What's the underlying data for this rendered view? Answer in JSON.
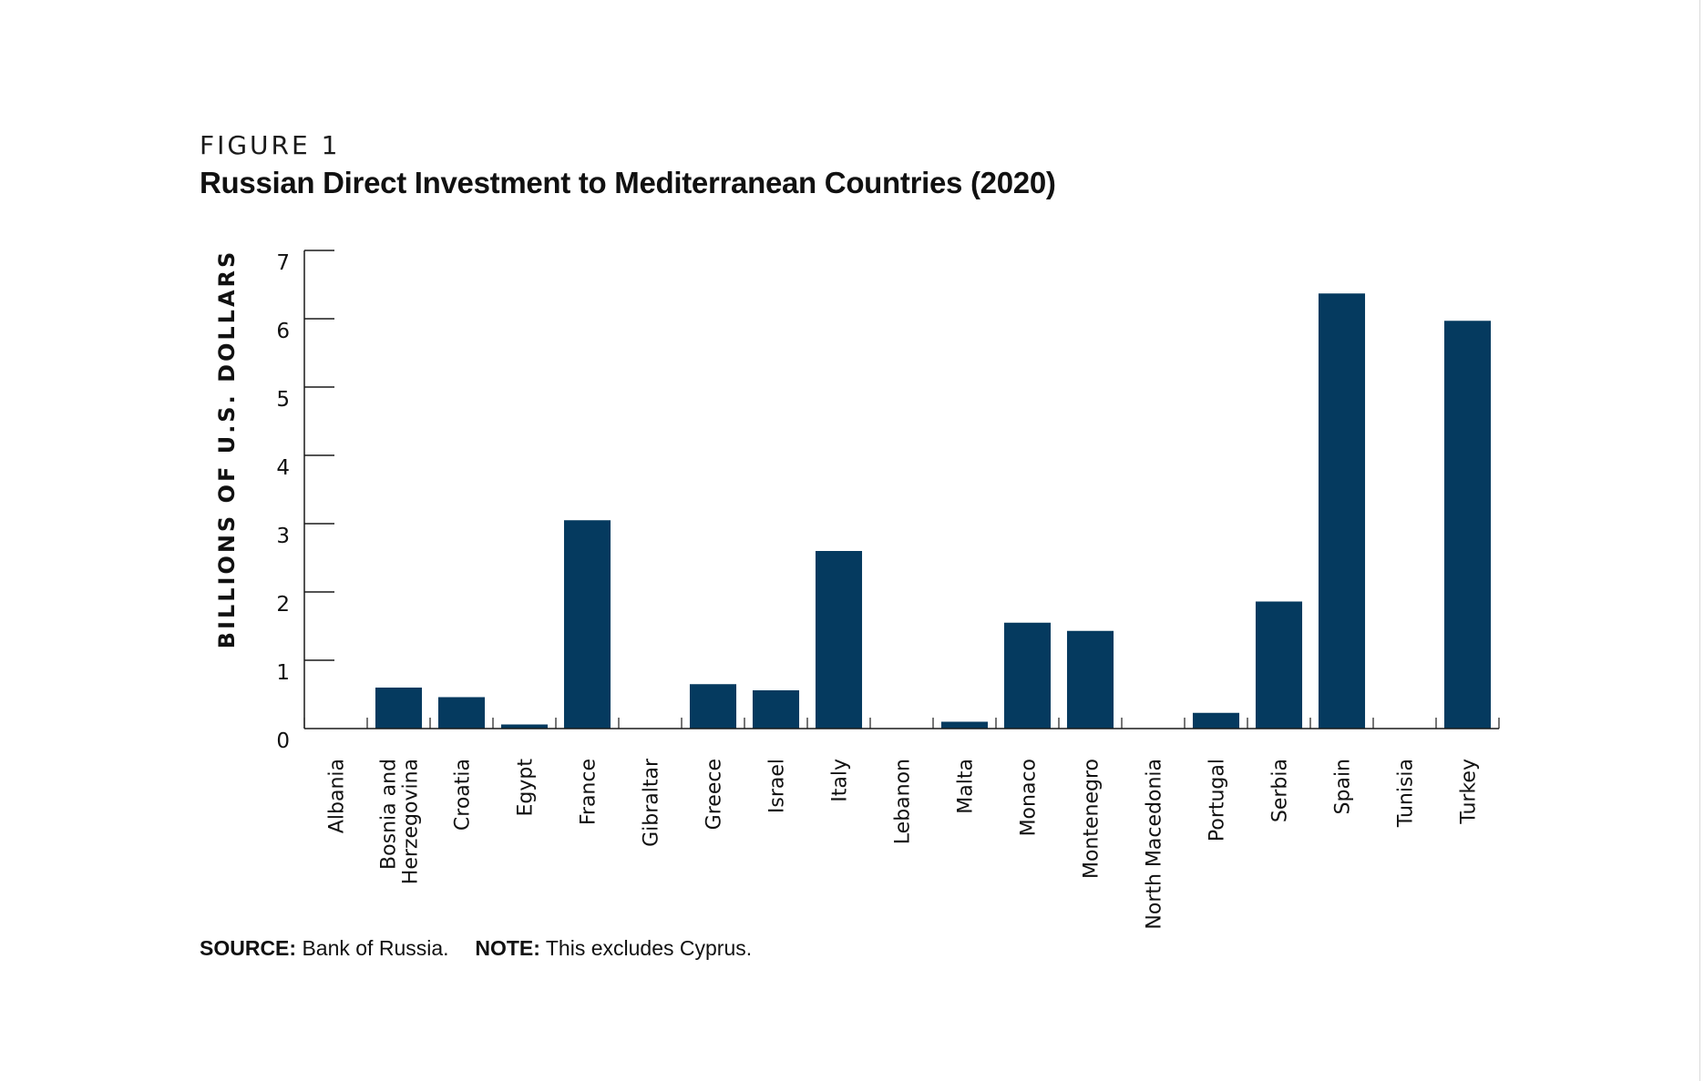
{
  "figure": {
    "label": "FIGURE 1",
    "title": "Russian Direct Investment to Mediterranean Countries (2020)"
  },
  "footer": {
    "source_label": "SOURCE:",
    "source_text": "Bank of Russia.",
    "note_label": "NOTE:",
    "note_text": "This excludes Cyprus."
  },
  "colors": {
    "bar": "#053a5f",
    "axis": "#1a1a1a"
  },
  "chart_data": {
    "type": "bar",
    "title": "Russian Direct Investment to Mediterranean Countries (2020)",
    "xlabel": "",
    "ylabel": "BILLIONS OF U.S. DOLLARS",
    "ylim": [
      0,
      7
    ],
    "yticks": [
      0,
      1,
      2,
      3,
      4,
      5,
      6,
      7
    ],
    "grid": false,
    "categories": [
      [
        "Albania"
      ],
      [
        "Bosnia and",
        "Herzegovina"
      ],
      [
        "Croatia"
      ],
      [
        "Egypt"
      ],
      [
        "France"
      ],
      [
        "Gibraltar"
      ],
      [
        "Greece"
      ],
      [
        "Israel"
      ],
      [
        "Italy"
      ],
      [
        "Lebanon"
      ],
      [
        "Malta"
      ],
      [
        "Monaco"
      ],
      [
        "Montenegro"
      ],
      [
        "North Macedonia"
      ],
      [
        "Portugal"
      ],
      [
        "Serbia"
      ],
      [
        "Spain"
      ],
      [
        "Tunisia"
      ],
      [
        "Turkey"
      ]
    ],
    "values": [
      0,
      0.6,
      0.46,
      0.06,
      3.05,
      0,
      0.65,
      0.56,
      2.6,
      0,
      0.1,
      1.55,
      1.43,
      0,
      0.23,
      1.86,
      6.37,
      0,
      5.97
    ]
  }
}
